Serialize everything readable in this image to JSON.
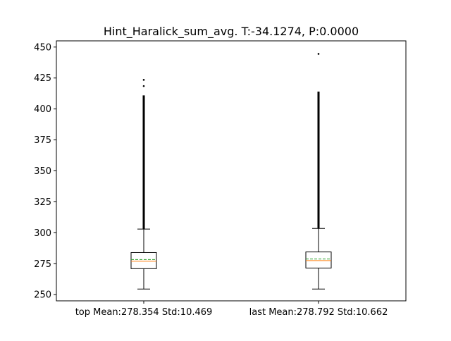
{
  "chart_data": {
    "type": "box",
    "title": "Hint_Haralick_sum_avg. T:-34.1274, P:0.0000",
    "xlabel": "",
    "ylabel": "",
    "ylim": [
      245,
      455
    ],
    "yticks": [
      250,
      275,
      300,
      325,
      350,
      375,
      400,
      425,
      450
    ],
    "categories": [
      "top Mean:278.354 Std:10.469",
      "last Mean:278.792 Std:10.662"
    ],
    "boxes": [
      {
        "label": "top Mean:278.354 Std:10.469",
        "whisker_low": 254.5,
        "q1": 271.0,
        "median": 277.0,
        "mean": 278.354,
        "q3": 284.0,
        "whisker_high": 303.0,
        "outlier_range": [
          303,
          411
        ],
        "outliers": [
          418.5,
          423.5
        ]
      },
      {
        "label": "last Mean:278.792 Std:10.662",
        "whisker_low": 254.5,
        "q1": 271.5,
        "median": 277.5,
        "mean": 278.792,
        "q3": 284.5,
        "whisker_high": 303.5,
        "outlier_range": [
          303.5,
          414
        ],
        "outliers": [
          444.5
        ]
      }
    ],
    "colors": {
      "box": "#000000",
      "median": "#ff7f0e",
      "mean": "#2ca02c"
    },
    "grid": false,
    "legend": "none"
  }
}
